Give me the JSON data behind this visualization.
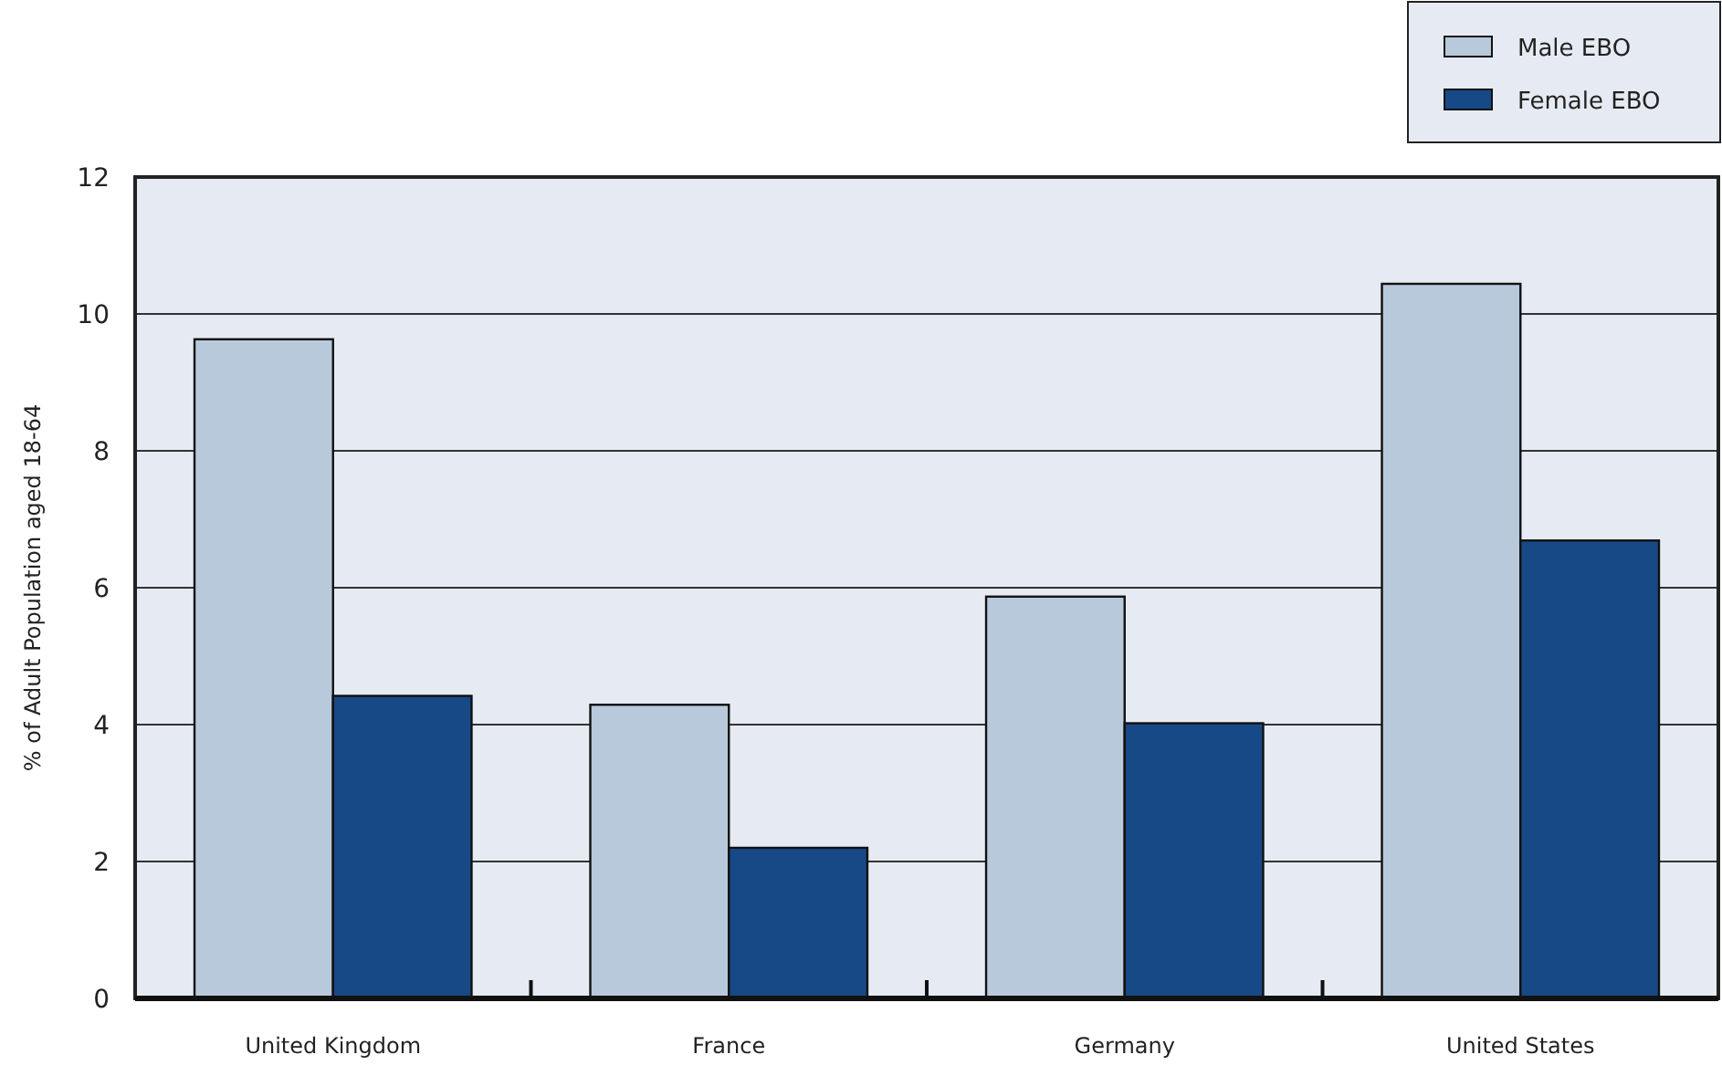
{
  "chart_data": {
    "type": "bar",
    "ylabel": "% of Adult Population aged 18-64",
    "categories": [
      "United Kingdom",
      "France",
      "Germany",
      "United States"
    ],
    "series": [
      {
        "name": "Male EBO",
        "color": "#b8c9db",
        "values": [
          9.63,
          4.29,
          5.87,
          10.44
        ]
      },
      {
        "name": "Female EBO",
        "color": "#174987",
        "values": [
          4.42,
          2.2,
          4.02,
          6.69
        ]
      }
    ],
    "ylim": [
      0,
      12
    ],
    "yticks": [
      0,
      2,
      4,
      6,
      8,
      10,
      12
    ],
    "grid": "y",
    "legend": "top right"
  }
}
